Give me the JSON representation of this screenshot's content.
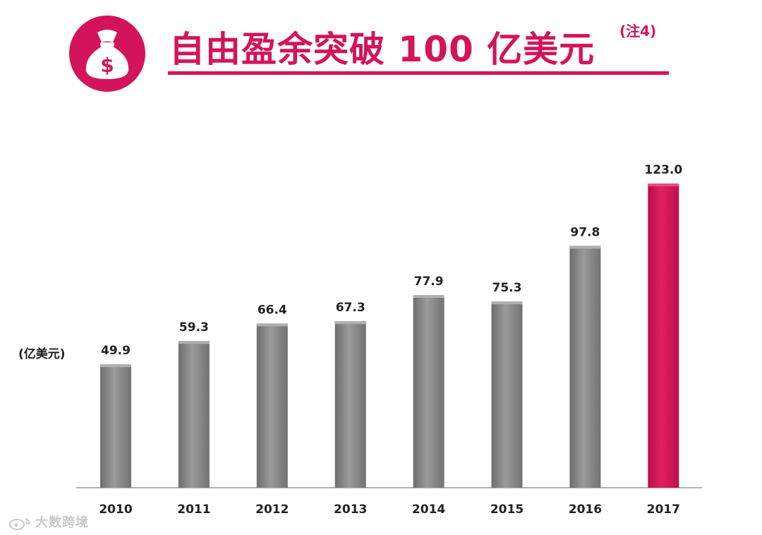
{
  "header": {
    "icon": "money-bag-icon",
    "title": "自由盈余突破 100 亿美元",
    "title_note": "(注4)",
    "accent_color": "#d4145a"
  },
  "chart_data": {
    "type": "bar",
    "title": "自由盈余突破 100 亿美元",
    "unit_label": "(亿美元)",
    "categories": [
      "2010",
      "2011",
      "2012",
      "2013",
      "2014",
      "2015",
      "2016",
      "2017"
    ],
    "values": [
      49.9,
      59.3,
      66.4,
      67.3,
      77.9,
      75.3,
      97.8,
      123.0
    ],
    "value_labels": [
      "49.9",
      "59.3",
      "66.4",
      "67.3",
      "77.9",
      "75.3",
      "97.8",
      "123.0"
    ],
    "highlight_index": 7,
    "bar_color": "#888888",
    "highlight_color": "#d4145a",
    "ylim": [
      0,
      140
    ],
    "grid": false,
    "xlabel": "",
    "ylabel": ""
  },
  "watermark": {
    "text": "大数跨境",
    "icon": "weibo-icon"
  }
}
